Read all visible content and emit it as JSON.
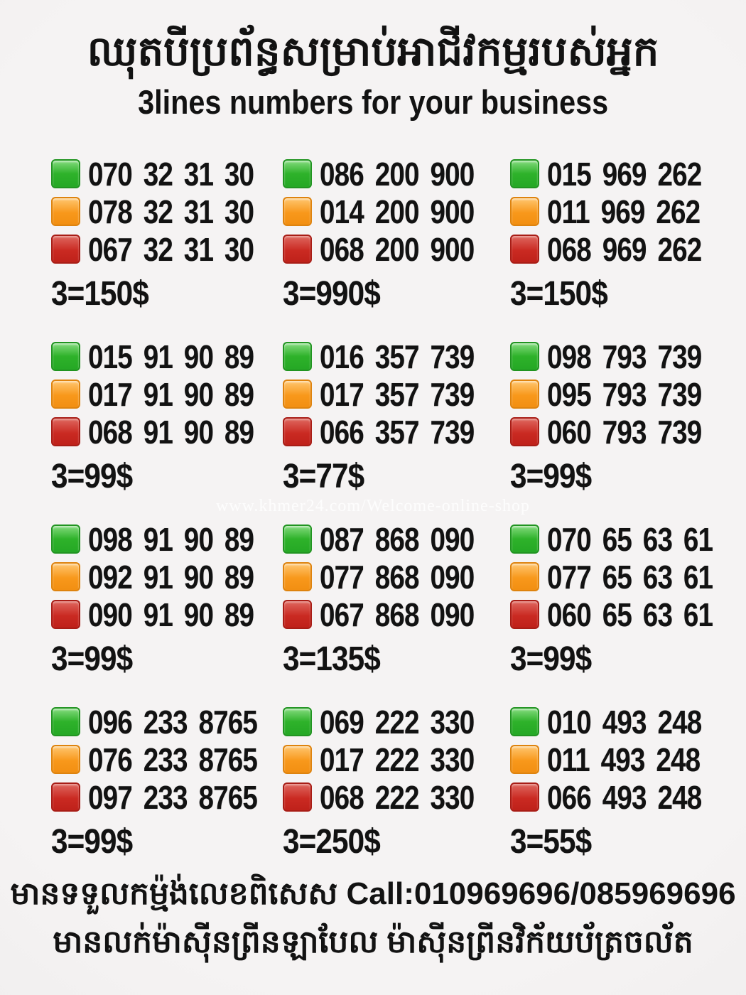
{
  "page": {
    "title_khmer": "ឈុតបីប្រព័ន្ធសម្រាប់អាជីវកម្មរបស់អ្នក",
    "subtitle": "3lines numbers for your business",
    "watermark": "www.khmer24.com/Welcome-online-shop"
  },
  "colors": {
    "green_square": "#2eb22a",
    "orange_square": "#f8981b",
    "red_square": "#ca2a22",
    "text": "#121212",
    "background": "#f3f1f1"
  },
  "groups": [
    {
      "green": "070 32 31 30",
      "orange": "078 32 31 30",
      "red": "067 32 31 30",
      "price": "3=150$"
    },
    {
      "green": "086 200 900",
      "orange": "014 200 900",
      "red": "068 200 900",
      "price": "3=990$"
    },
    {
      "green": "015 969 262",
      "orange": "011 969 262",
      "red": "068 969 262",
      "price": "3=150$"
    },
    {
      "green": "015 91 90 89",
      "orange": "017 91 90 89",
      "red": "068 91 90 89",
      "price": "3=99$"
    },
    {
      "green": "016 357 739",
      "orange": "017 357 739",
      "red": "066 357 739",
      "price": "3=77$"
    },
    {
      "green": "098 793 739",
      "orange": "095 793 739",
      "red": "060 793 739",
      "price": "3=99$"
    },
    {
      "green": "098 91 90 89",
      "orange": "092 91 90 89",
      "red": "090 91 90 89",
      "price": "3=99$"
    },
    {
      "green": "087 868 090",
      "orange": "077 868 090",
      "red": "067 868 090",
      "price": "3=135$"
    },
    {
      "green": "070 65 63 61",
      "orange": "077 65 63 61",
      "red": "060 65 63 61",
      "price": "3=99$"
    },
    {
      "green": "096 233 8765",
      "orange": "076 233 8765",
      "red": "097 233 8765",
      "price": "3=99$"
    },
    {
      "green": "069 222 330",
      "orange": "017 222 330",
      "red": "068 222 330",
      "price": "3=250$"
    },
    {
      "green": "010 493 248",
      "orange": "011 493 248",
      "red": "066 493 248",
      "price": "3=55$"
    }
  ],
  "footer": {
    "line1_khmer": "មានទទួលកម្ម៉ង់លេខពិសេស",
    "line1_call": "Call:010969696/085969696",
    "line2_khmer": "មានលក់ម៉ាស៊ីនព្រីនឡាបែល ម៉ាស៊ីនព្រីនវិក័យប័ត្រចល័ត"
  }
}
